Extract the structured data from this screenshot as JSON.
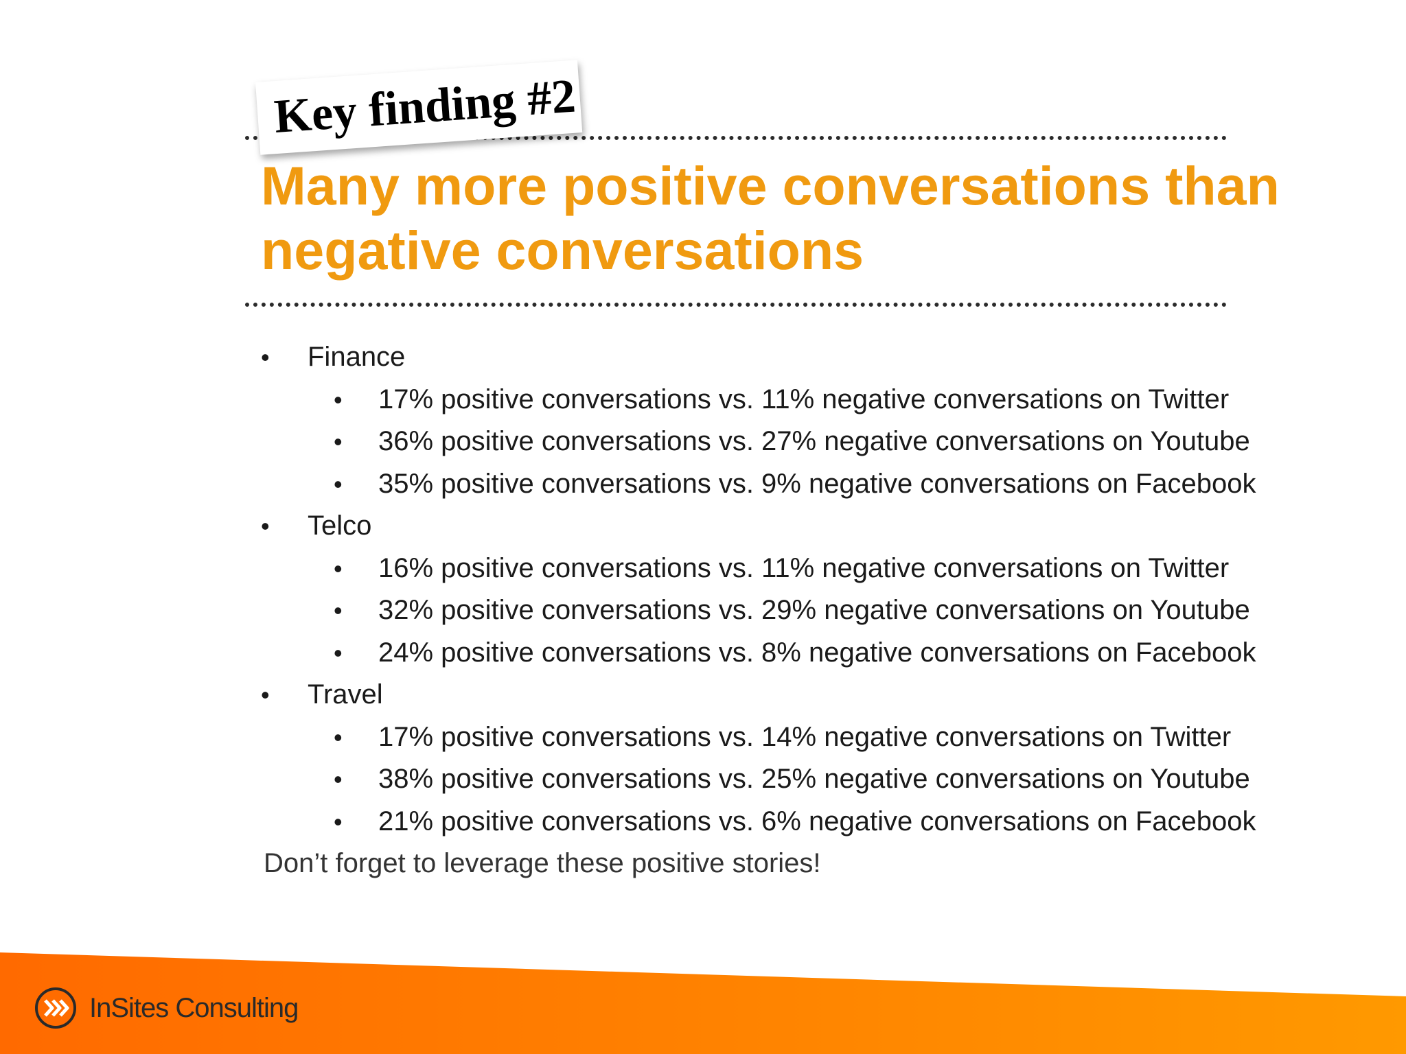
{
  "tag": {
    "text": "Key finding #2"
  },
  "headline": {
    "line1": "Many more positive conversations than",
    "line2": "negative conversations"
  },
  "sections": [
    {
      "label": "Finance",
      "items": [
        "17% positive conversations vs. 11% negative conversations on Twitter",
        "36% positive conversations vs. 27% negative conversations on Youtube",
        "35% positive conversations vs. 9% negative conversations on Facebook"
      ]
    },
    {
      "label": "Telco",
      "items": [
        "16% positive conversations vs. 11% negative conversations on Twitter",
        "32% positive conversations vs. 29% negative conversations on Youtube",
        "24% positive conversations vs. 8% negative conversations on Facebook"
      ]
    },
    {
      "label": "Travel",
      "items": [
        "17% positive conversations vs. 14% negative conversations on Twitter",
        "38% positive conversations vs. 25% negative conversations on Youtube",
        "21% positive conversations vs. 6% negative conversations on Facebook"
      ]
    }
  ],
  "closing_note": "Don’t forget to leverage these positive stories!",
  "bullet_glyph": "•",
  "brand": {
    "name": "InSites Consulting",
    "logo_icon": "chevrons-circle-icon"
  },
  "colors": {
    "headline": "#f09a10",
    "band_start": "#ff6a00",
    "band_end": "#ff9900"
  }
}
